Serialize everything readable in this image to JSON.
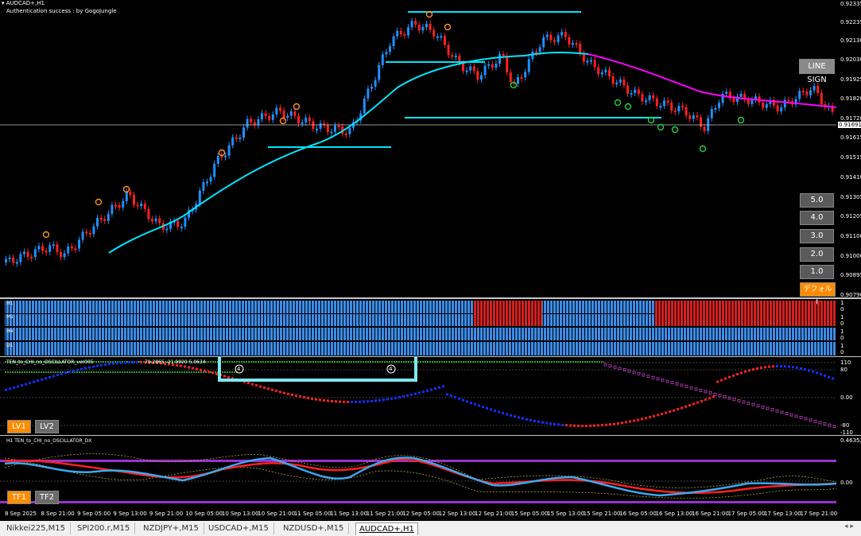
{
  "chart": {
    "symbol_title": "AUDCAD+,H1",
    "auth_text": "Authentication success : by GogoJungle",
    "price_labels": [
      "0.92335",
      "0.92235",
      "0.92130",
      "0.92030",
      "0.91925",
      "0.91820",
      "0.91720",
      "0.91615",
      "0.91515",
      "0.91410",
      "0.91305",
      "0.91205",
      "0.91100",
      "0.91000",
      "0.90895",
      "0.90790"
    ],
    "current_price": "0.91691",
    "line_sign_button": "LINE SIGN",
    "level_buttons": [
      "5.0",
      "4.0",
      "3.0",
      "2.0",
      "1.0"
    ],
    "default_button": "デフォルト",
    "colors": {
      "accent": "#00e5ff",
      "bull": "#1e90ff",
      "bear": "#ff2020",
      "ma_down": "#ff00ff"
    }
  },
  "mtf_panel": {
    "rows": [
      "H1",
      "M1",
      "H4",
      "D1"
    ],
    "axis_labels": [
      [
        "1",
        "0"
      ],
      [
        "1",
        "0"
      ],
      [
        "1",
        "0"
      ],
      [
        "1",
        "0"
      ]
    ]
  },
  "osc1": {
    "title": "TEN_to_CHI_no_OSCILLATOR_ver005",
    "values_text": "79.2865 -21.9920 5.0634",
    "axis_labels": [
      "110",
      "80",
      "0.00",
      "-80",
      "-110"
    ],
    "marker": "4",
    "lv_buttons": [
      "LV1",
      "LV2"
    ]
  },
  "osc2": {
    "title": "H1 TEN_to_CHI_no_OSCILLATOR_DX",
    "axis_labels": [
      "0.46352",
      "0.00"
    ],
    "tf_buttons": [
      "TF1",
      "TF2"
    ]
  },
  "date_axis": [
    "8 Sep 2025",
    "8 Sep 21:00",
    "9 Sep 05:00",
    "9 Sep 13:00",
    "9 Sep 21:00",
    "10 Sep 05:00",
    "10 Sep 13:00",
    "10 Sep 21:00",
    "11 Sep 05:00",
    "11 Sep 13:00",
    "11 Sep 21:00",
    "12 Sep 05:00",
    "12 Sep 13:00",
    "12 Sep 21:00",
    "15 Sep 05:00",
    "15 Sep 13:00",
    "15 Sep 21:00",
    "16 Sep 05:00",
    "16 Sep 13:00",
    "16 Sep 21:00",
    "17 Sep 05:00",
    "17 Sep 13:00",
    "17 Sep 21:00"
  ],
  "tabs": [
    "Nikkei225,M15",
    "SPI200.r,M15",
    "NZDJPY+,M15",
    "USDCAD+,M15",
    "NZDUSD+,M15",
    "AUDCAD+,H1"
  ],
  "active_tab": 5
}
